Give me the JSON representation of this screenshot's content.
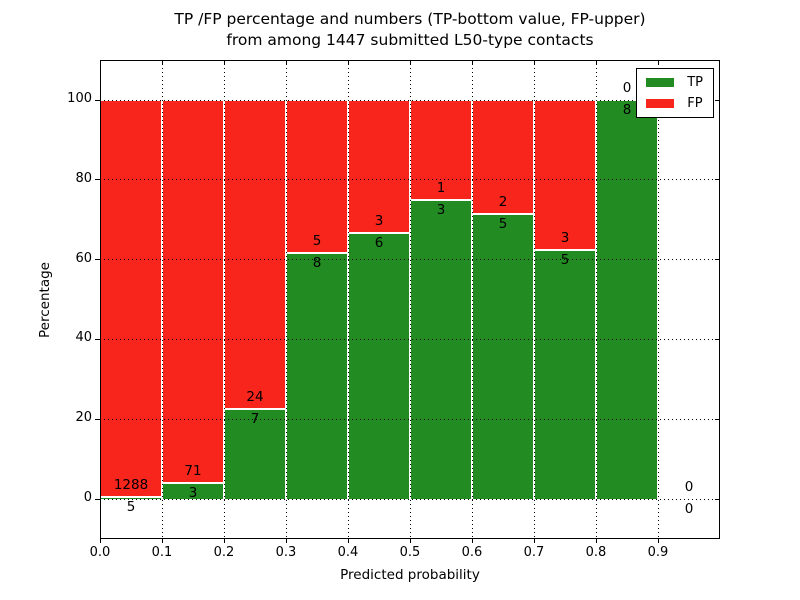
{
  "title": {
    "line1": "TP /FP percentage and numbers (TP-bottom value, FP-upper)",
    "line2": "from among 1447 submitted L50-type contacts"
  },
  "axes": {
    "x_label": "Predicted probability",
    "y_label": "Percentage"
  },
  "legend": {
    "position": "upper-right",
    "items": [
      {
        "label": "TP",
        "color": "#228b22"
      },
      {
        "label": "FP",
        "color": "#f8251d"
      }
    ]
  },
  "chart_data": {
    "type": "bar",
    "variant": "stacked-percentage",
    "title": "TP /FP percentage and numbers (TP-bottom value, FP-upper) from among 1447 submitted L50-type contacts",
    "xlabel": "Predicted probability",
    "ylabel": "Percentage",
    "total_contacts": 1447,
    "bin_edges": [
      0.0,
      0.1,
      0.2,
      0.3,
      0.4,
      0.5,
      0.6,
      0.7,
      0.8,
      0.9,
      1.0
    ],
    "x_tick_labels": [
      "0.0",
      "0.1",
      "0.2",
      "0.3",
      "0.4",
      "0.5",
      "0.6",
      "0.7",
      "0.8",
      "0.9"
    ],
    "y_ticks": [
      0,
      20,
      40,
      60,
      80,
      100
    ],
    "xlim": [
      0.0,
      1.0
    ],
    "ylim": [
      -10,
      110
    ],
    "grid": true,
    "series": [
      {
        "name": "TP",
        "color": "#228b22",
        "counts": [
          5,
          3,
          7,
          8,
          6,
          3,
          5,
          5,
          8,
          0
        ]
      },
      {
        "name": "FP",
        "color": "#f8251d",
        "counts": [
          1288,
          71,
          24,
          5,
          3,
          1,
          2,
          3,
          0,
          0
        ]
      }
    ],
    "tp_percent_by_bin": [
      0.39,
      4.05,
      22.58,
      61.54,
      66.67,
      75.0,
      71.43,
      62.5,
      100.0,
      0.0
    ]
  }
}
